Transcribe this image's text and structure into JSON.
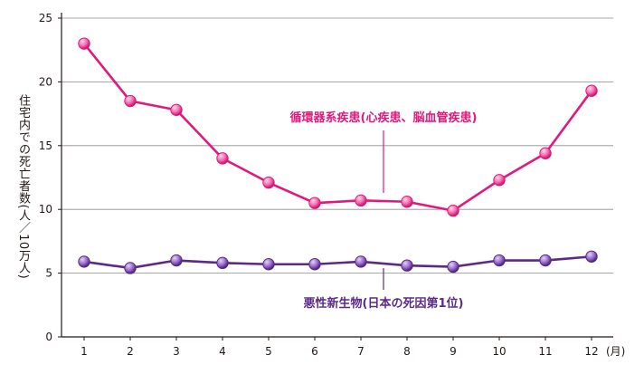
{
  "chart_data": {
    "type": "line",
    "categories": [
      "1",
      "2",
      "3",
      "4",
      "5",
      "6",
      "7",
      "8",
      "9",
      "10",
      "11",
      "12"
    ],
    "x_unit": "(月)",
    "ylabel": "住宅内での死亡者数(人／10万人)",
    "ylim": [
      0,
      25
    ],
    "yticks": [
      0,
      5,
      10,
      15,
      20,
      25
    ],
    "grid": "horizontal",
    "series": [
      {
        "name": "循環器系疾患(心疾患、脳血管疾患)",
        "color": "#e0197d",
        "values": [
          23.0,
          18.5,
          17.8,
          14.0,
          12.1,
          10.5,
          10.7,
          10.6,
          9.9,
          12.3,
          14.4,
          19.3
        ]
      },
      {
        "name": "悪性新生物(日本の死因第1位)",
        "color": "#5b2a86",
        "values": [
          5.9,
          5.4,
          6.0,
          5.8,
          5.7,
          5.7,
          5.9,
          5.6,
          5.5,
          6.0,
          6.0,
          6.3
        ]
      }
    ]
  }
}
